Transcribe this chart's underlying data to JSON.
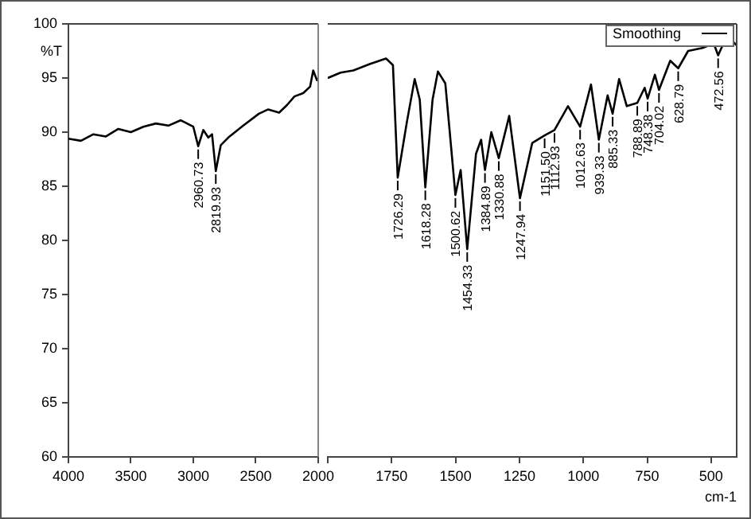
{
  "chart_data": [
    {
      "type": "line",
      "ylabel": "%T",
      "xlim": [
        4000,
        2000
      ],
      "xticks": [
        4000,
        3500,
        3000,
        2500,
        2000
      ],
      "ylim": [
        60,
        100
      ],
      "yticks": [
        60,
        65,
        70,
        75,
        80,
        85,
        90,
        95,
        100
      ],
      "grid": false,
      "marker": "none",
      "line_style": "solid",
      "x": [
        4000,
        3900,
        3800,
        3700,
        3600,
        3500,
        3400,
        3300,
        3200,
        3100,
        3000,
        2960.73,
        2920,
        2880,
        2850,
        2819.93,
        2780,
        2720,
        2600,
        2475,
        2400,
        2313,
        2250,
        2190,
        2120,
        2065,
        2040,
        2010,
        2000
      ],
      "series": [
        {
          "color": "#000000",
          "values": [
            89.4,
            89.2,
            89.8,
            89.6,
            90.3,
            90,
            90.5,
            90.8,
            90.6,
            91.1,
            90.5,
            88.7,
            90.2,
            89.5,
            89.8,
            86.4,
            88.8,
            89.5,
            90.6,
            91.7,
            92.1,
            91.8,
            92.5,
            93.3,
            93.6,
            94.2,
            95.7,
            94.8,
            95
          ]
        }
      ],
      "annotations": [
        {
          "text": "2960.73",
          "x": 2960.73,
          "y": 88.7
        },
        {
          "text": "2819.93",
          "x": 2819.93,
          "y": 86.4
        }
      ]
    },
    {
      "type": "line",
      "xlabel": "cm-1",
      "xlim": [
        2000,
        400
      ],
      "xticks": [
        {
          "value": 2000,
          "label": null
        },
        1750,
        1500,
        1250,
        1000,
        750,
        500
      ],
      "ylim": [
        60,
        100
      ],
      "tick_labels": "x",
      "grid": false,
      "legend": "top right",
      "marker": "none",
      "line_style": "solid",
      "x": [
        2000,
        1950,
        1900,
        1834,
        1772,
        1745,
        1726.29,
        1690,
        1660,
        1640,
        1618.28,
        1590,
        1569,
        1540,
        1515,
        1500.62,
        1480,
        1454.33,
        1420,
        1400,
        1384.89,
        1360,
        1330.88,
        1290,
        1247.94,
        1200,
        1151.5,
        1112.93,
        1060,
        1012.63,
        970,
        939.33,
        905,
        885.33,
        860,
        830,
        788.89,
        760,
        748.38,
        720,
        704.02,
        660,
        628.79,
        590,
        530,
        490,
        472.56,
        440,
        420,
        400
      ],
      "series": [
        {
          "name": "Smoothing",
          "color": "#000000",
          "values": [
            95,
            95.5,
            95.7,
            96.3,
            96.8,
            96.2,
            85.8,
            91,
            94.9,
            93,
            84.9,
            93,
            95.6,
            94.5,
            88,
            84.2,
            86.5,
            79.2,
            88,
            89.3,
            86.5,
            90,
            87.6,
            91.5,
            83.9,
            89,
            89.7,
            90.2,
            92.4,
            90.5,
            94.4,
            89.3,
            93.4,
            91.7,
            94.9,
            92.4,
            92.7,
            94.1,
            93.1,
            95.3,
            93.9,
            96.6,
            95.9,
            97.5,
            97.8,
            98.2,
            97.1,
            98.8,
            98.5,
            98
          ]
        }
      ],
      "annotations": [
        {
          "text": "1726.29",
          "x": 1726.29,
          "y": 85.8
        },
        {
          "text": "1618.28",
          "x": 1618.28,
          "y": 84.9
        },
        {
          "text": "1500.62",
          "x": 1500.62,
          "y": 84.2
        },
        {
          "text": "1454.33",
          "x": 1454.33,
          "y": 79.2
        },
        {
          "text": "1384.89",
          "x": 1384.89,
          "y": 86.5
        },
        {
          "text": "1330.88",
          "x": 1330.88,
          "y": 87.6
        },
        {
          "text": "1247.94",
          "x": 1247.94,
          "y": 83.9
        },
        {
          "text": "1151.50",
          "x": 1151.5,
          "y": 89.7
        },
        {
          "text": "1112.93",
          "x": 1112.93,
          "y": 90.2
        },
        {
          "text": "1012.63",
          "x": 1012.63,
          "y": 90.5
        },
        {
          "text": "939.33",
          "x": 939.33,
          "y": 89.3
        },
        {
          "text": "885.33",
          "x": 885.33,
          "y": 91.7
        },
        {
          "text": "788.89",
          "x": 788.89,
          "y": 92.7
        },
        {
          "text": "748.38",
          "x": 748.38,
          "y": 93.1
        },
        {
          "text": "704.02",
          "x": 704.02,
          "y": 93.9
        },
        {
          "text": "628.79",
          "x": 628.79,
          "y": 95.9
        },
        {
          "text": "472.56",
          "x": 472.56,
          "y": 97.1
        }
      ]
    }
  ]
}
